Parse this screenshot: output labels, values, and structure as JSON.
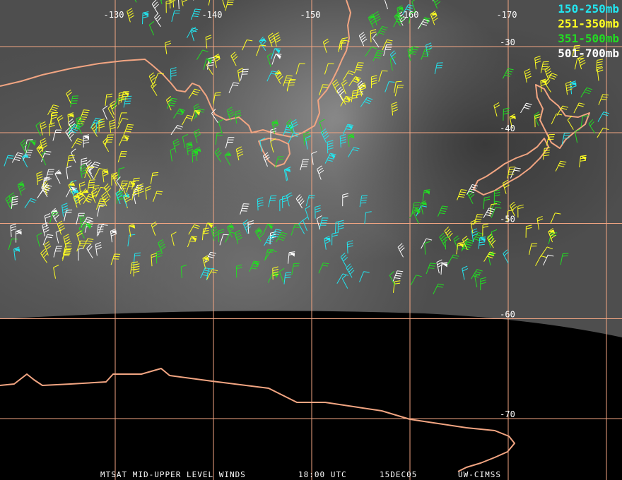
{
  "map": {
    "longitudes": [
      -130,
      -140,
      -150,
      -160,
      -170
    ],
    "latitudes": [
      -30,
      -40,
      -50,
      -60,
      -70
    ],
    "legend": [
      {
        "name": "150-250mb",
        "color": "#22e6f0"
      },
      {
        "name": "251-350mb",
        "color": "#ffff22"
      },
      {
        "name": "351-500mb",
        "color": "#22dd22"
      },
      {
        "name": "501-700mb",
        "color": "#ffffff"
      }
    ],
    "footer": {
      "title": "MTSAT MID-UPPER LEVEL WINDS",
      "time": "18:00 UTC",
      "date": "15DEC05",
      "source": "UW-CIMSS"
    }
  }
}
